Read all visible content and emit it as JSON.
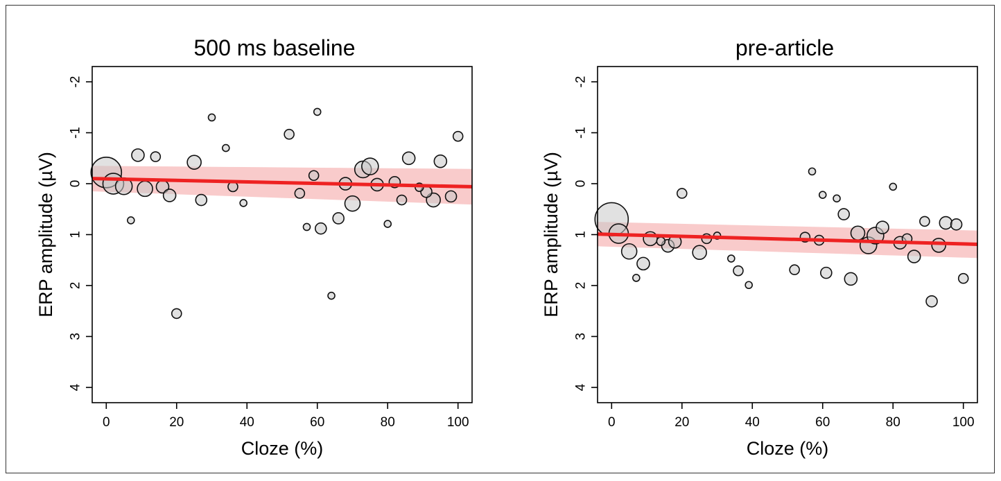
{
  "colors": {
    "line": "#ee2222",
    "ci_band": "#f8c2c2",
    "marker_fill": "#c8c8c8",
    "marker_stroke": "#111111"
  },
  "chart_data": [
    {
      "type": "scatter",
      "title": "500 ms baseline",
      "xlabel": "Cloze (%)",
      "ylabel": "ERP amplitude (µV)",
      "xlim": [
        -4,
        104
      ],
      "ylim": [
        -2.3,
        4.3
      ],
      "y_inverted": true,
      "x_ticks": [
        0,
        20,
        40,
        60,
        80,
        100
      ],
      "y_ticks": [
        -2,
        -1,
        0,
        1,
        2,
        3,
        4
      ],
      "y_tick_labels_rotated": true,
      "grid": false,
      "fit": {
        "x": [
          -4,
          104
        ],
        "y": [
          -0.1,
          0.06
        ],
        "ci_half_width_start": 0.25,
        "ci_half_width_end": 0.35
      },
      "points": [
        {
          "x": 0,
          "y": -0.22,
          "size": 22
        },
        {
          "x": 2,
          "y": 0.0,
          "size": 15
        },
        {
          "x": 5,
          "y": 0.05,
          "size": 12
        },
        {
          "x": 7,
          "y": 0.72,
          "size": 5
        },
        {
          "x": 9,
          "y": -0.56,
          "size": 9
        },
        {
          "x": 11,
          "y": 0.1,
          "size": 11
        },
        {
          "x": 14,
          "y": -0.53,
          "size": 7
        },
        {
          "x": 16,
          "y": 0.06,
          "size": 9
        },
        {
          "x": 18,
          "y": 0.23,
          "size": 9
        },
        {
          "x": 20,
          "y": 2.55,
          "size": 7
        },
        {
          "x": 25,
          "y": -0.42,
          "size": 10
        },
        {
          "x": 27,
          "y": 0.32,
          "size": 8
        },
        {
          "x": 30,
          "y": -1.3,
          "size": 5
        },
        {
          "x": 34,
          "y": -0.7,
          "size": 5
        },
        {
          "x": 36,
          "y": 0.06,
          "size": 7
        },
        {
          "x": 39,
          "y": 0.38,
          "size": 5
        },
        {
          "x": 52,
          "y": -0.97,
          "size": 7
        },
        {
          "x": 55,
          "y": 0.19,
          "size": 7
        },
        {
          "x": 57,
          "y": 0.85,
          "size": 5
        },
        {
          "x": 59,
          "y": -0.16,
          "size": 7
        },
        {
          "x": 60,
          "y": -1.41,
          "size": 5
        },
        {
          "x": 61,
          "y": 0.88,
          "size": 8
        },
        {
          "x": 64,
          "y": 2.2,
          "size": 5
        },
        {
          "x": 66,
          "y": 0.68,
          "size": 8
        },
        {
          "x": 68,
          "y": 0.0,
          "size": 9
        },
        {
          "x": 70,
          "y": 0.39,
          "size": 11
        },
        {
          "x": 73,
          "y": -0.28,
          "size": 12
        },
        {
          "x": 75,
          "y": -0.34,
          "size": 12
        },
        {
          "x": 77,
          "y": 0.02,
          "size": 9
        },
        {
          "x": 80,
          "y": 0.79,
          "size": 5
        },
        {
          "x": 82,
          "y": -0.03,
          "size": 8
        },
        {
          "x": 84,
          "y": 0.32,
          "size": 7
        },
        {
          "x": 86,
          "y": -0.5,
          "size": 9
        },
        {
          "x": 89,
          "y": 0.07,
          "size": 6
        },
        {
          "x": 91,
          "y": 0.16,
          "size": 8
        },
        {
          "x": 93,
          "y": 0.32,
          "size": 10
        },
        {
          "x": 95,
          "y": -0.44,
          "size": 9
        },
        {
          "x": 98,
          "y": 0.25,
          "size": 8
        },
        {
          "x": 100,
          "y": -0.93,
          "size": 7
        }
      ]
    },
    {
      "type": "scatter",
      "title": "pre-article",
      "xlabel": "Cloze (%)",
      "ylabel": "ERP amplitude (µV)",
      "xlim": [
        -4,
        104
      ],
      "ylim": [
        -2.3,
        4.3
      ],
      "y_inverted": true,
      "x_ticks": [
        0,
        20,
        40,
        60,
        80,
        100
      ],
      "y_ticks": [
        -2,
        -1,
        0,
        1,
        2,
        3,
        4
      ],
      "y_tick_labels_rotated": true,
      "grid": false,
      "fit": {
        "x": [
          -4,
          104
        ],
        "y": [
          0.99,
          1.19
        ],
        "ci_half_width_start": 0.24,
        "ci_half_width_end": 0.27
      },
      "points": [
        {
          "x": 0,
          "y": 0.7,
          "size": 24
        },
        {
          "x": 2,
          "y": 0.98,
          "size": 14
        },
        {
          "x": 5,
          "y": 1.33,
          "size": 11
        },
        {
          "x": 7,
          "y": 1.85,
          "size": 5
        },
        {
          "x": 9,
          "y": 1.57,
          "size": 9
        },
        {
          "x": 11,
          "y": 1.08,
          "size": 10
        },
        {
          "x": 14,
          "y": 1.13,
          "size": 6
        },
        {
          "x": 16,
          "y": 1.22,
          "size": 9
        },
        {
          "x": 18,
          "y": 1.14,
          "size": 9
        },
        {
          "x": 20,
          "y": 0.19,
          "size": 7
        },
        {
          "x": 25,
          "y": 1.35,
          "size": 10
        },
        {
          "x": 27,
          "y": 1.08,
          "size": 7
        },
        {
          "x": 30,
          "y": 1.02,
          "size": 5
        },
        {
          "x": 34,
          "y": 1.47,
          "size": 5
        },
        {
          "x": 36,
          "y": 1.71,
          "size": 7
        },
        {
          "x": 39,
          "y": 1.99,
          "size": 5
        },
        {
          "x": 52,
          "y": 1.69,
          "size": 7
        },
        {
          "x": 55,
          "y": 1.05,
          "size": 7
        },
        {
          "x": 57,
          "y": -0.24,
          "size": 5
        },
        {
          "x": 59,
          "y": 1.11,
          "size": 7
        },
        {
          "x": 60,
          "y": 0.22,
          "size": 5
        },
        {
          "x": 61,
          "y": 1.75,
          "size": 8
        },
        {
          "x": 64,
          "y": 0.29,
          "size": 5
        },
        {
          "x": 66,
          "y": 0.6,
          "size": 8
        },
        {
          "x": 68,
          "y": 1.87,
          "size": 9
        },
        {
          "x": 70,
          "y": 0.97,
          "size": 10
        },
        {
          "x": 73,
          "y": 1.21,
          "size": 12
        },
        {
          "x": 75,
          "y": 1.02,
          "size": 12
        },
        {
          "x": 77,
          "y": 0.86,
          "size": 9
        },
        {
          "x": 80,
          "y": 0.06,
          "size": 5
        },
        {
          "x": 82,
          "y": 1.16,
          "size": 9
        },
        {
          "x": 84,
          "y": 1.08,
          "size": 7
        },
        {
          "x": 86,
          "y": 1.43,
          "size": 9
        },
        {
          "x": 89,
          "y": 0.74,
          "size": 7
        },
        {
          "x": 91,
          "y": 2.31,
          "size": 8
        },
        {
          "x": 93,
          "y": 1.21,
          "size": 10
        },
        {
          "x": 95,
          "y": 0.77,
          "size": 9
        },
        {
          "x": 98,
          "y": 0.8,
          "size": 8
        },
        {
          "x": 100,
          "y": 1.86,
          "size": 7
        }
      ]
    }
  ]
}
